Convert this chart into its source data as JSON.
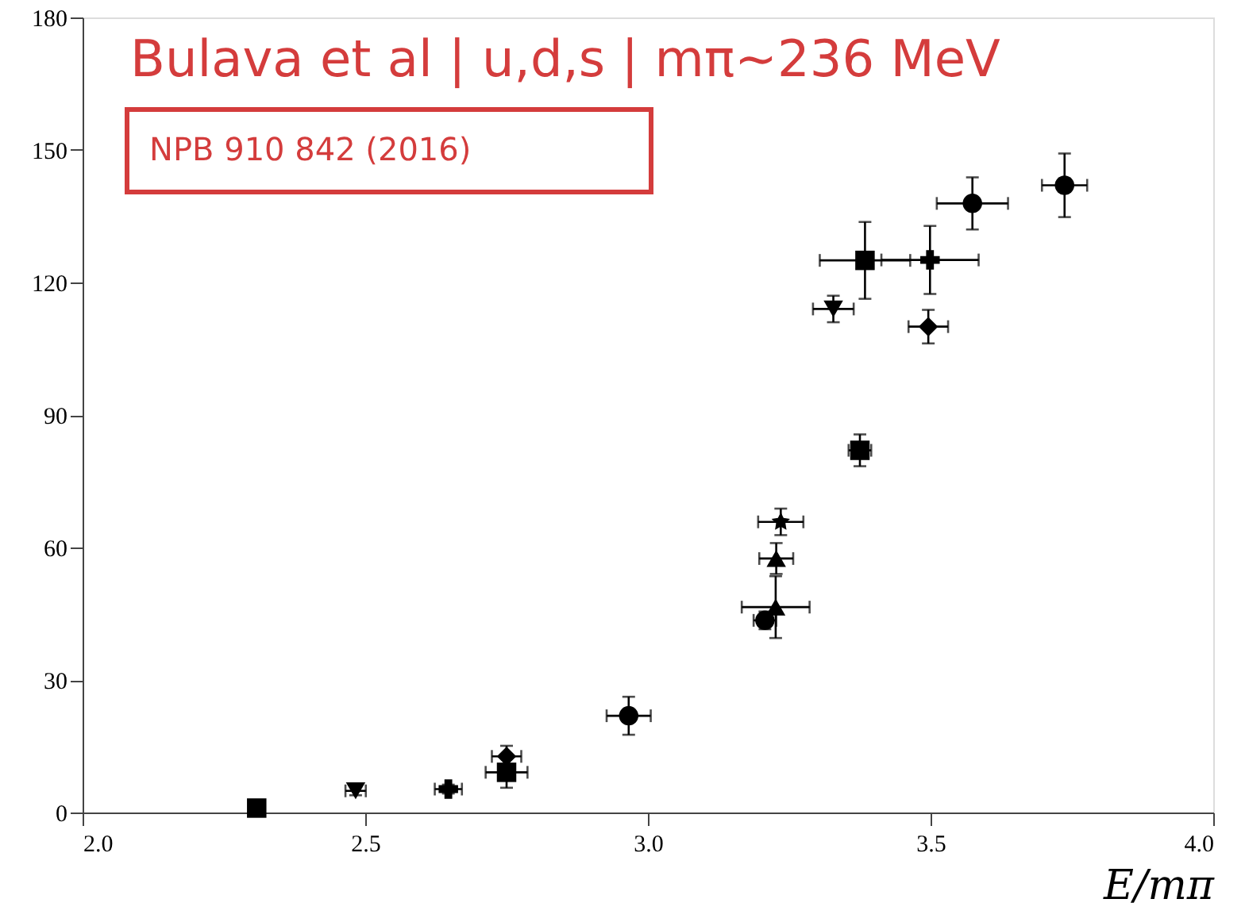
{
  "chart_data": {
    "type": "scatter",
    "title": "Bulava et al | u,d,s | mπ~236 MeV",
    "annotations": [
      "NPB 910 842 (2016)"
    ],
    "xlabel": "E/mπ",
    "xlim": [
      2.0,
      4.0
    ],
    "xticks": [
      {
        "value": 2.0,
        "label": "2.0"
      },
      {
        "value": 2.5,
        "label": "2.5"
      },
      {
        "value": 3.0,
        "label": "3.0"
      },
      {
        "value": 3.5,
        "label": "3.5"
      },
      {
        "value": 4.0,
        "label": "4.0"
      }
    ],
    "ylim": [
      0,
      180
    ],
    "yticks": [
      0,
      30,
      60,
      90,
      120,
      150,
      180
    ],
    "grid": false,
    "series": [
      {
        "color": "#000000",
        "marker": "circle",
        "x": [
          2.966,
          3.207,
          3.574,
          3.737
        ],
        "values": [
          21.9,
          43.5,
          137.9,
          142
        ],
        "errors": [
          4.3,
          2,
          5.9,
          7.2
        ],
        "xerrors": [
          0.039,
          0.02,
          0.063,
          0.04
        ]
      },
      {
        "color": "#000000",
        "marker": "square",
        "x": [
          2.308,
          2.75,
          3.375,
          3.384
        ],
        "values": [
          1.0,
          9.1,
          82,
          125
        ],
        "errors": [
          null,
          3.5,
          3.6,
          8.7
        ],
        "xerrors": [
          null,
          0.037,
          0.02,
          0.08
        ]
      },
      {
        "color": "#000000",
        "marker": "triangle",
        "x": [
          3.226,
          3.227
        ],
        "values": [
          46.5,
          57.5
        ],
        "errors": [
          7,
          3.5
        ],
        "xerrors": [
          0.06,
          0.03
        ]
      },
      {
        "color": "#000000",
        "marker": "triangle-down",
        "x": [
          2.483,
          3.328
        ],
        "values": [
          4.9,
          114
        ],
        "errors": [
          1,
          3
        ],
        "xerrors": [
          0.018,
          0.036
        ]
      },
      {
        "color": "#000000",
        "marker": "diamond",
        "x": [
          2.75,
          3.496
        ],
        "values": [
          12.7,
          110
        ],
        "errors": [
          2.4,
          3.8
        ],
        "xerrors": [
          0.026,
          0.035
        ]
      },
      {
        "color": "#000000",
        "marker": "star",
        "x": [
          3.235
        ],
        "values": [
          65.8
        ],
        "errors": [
          3
        ],
        "xerrors": [
          0.04
        ]
      },
      {
        "color": "#000000",
        "marker": "cross",
        "x": [
          2.647,
          3.499
        ],
        "values": [
          5.3,
          125.1
        ],
        "errors": [
          1,
          7.7
        ],
        "xerrors": [
          0.024,
          0.086
        ]
      }
    ]
  }
}
